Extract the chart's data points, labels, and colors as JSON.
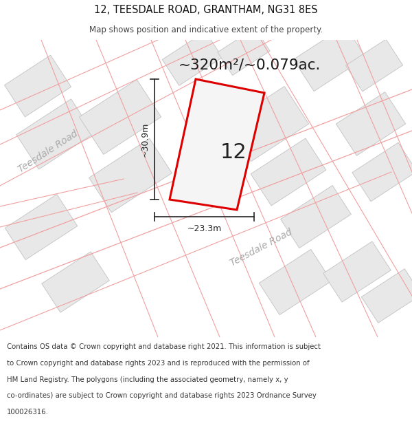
{
  "title_line1": "12, TEESDALE ROAD, GRANTHAM, NG31 8ES",
  "title_line2": "Map shows position and indicative extent of the property.",
  "area_text": "~320m²/~0.079ac.",
  "number_label": "12",
  "dim_vertical": "~30.9m",
  "dim_horizontal": "~23.3m",
  "road_label1": "Teesdale Road",
  "road_label2": "Teesdale Road",
  "footer_lines": [
    "Contains OS data © Crown copyright and database right 2021. This information is subject",
    "to Crown copyright and database rights 2023 and is reproduced with the permission of",
    "HM Land Registry. The polygons (including the associated geometry, namely x, y",
    "co-ordinates) are subject to Crown copyright and database rights 2023 Ordnance Survey",
    "100026316."
  ],
  "map_bg": "#ffffff",
  "bld_fill": "#e8e8e8",
  "bld_edge": "#c8c8c8",
  "road_line_color": "#f0a0a0",
  "highlight_color": "#dd0000",
  "highlight_fill": "#f5f5f5",
  "dim_color": "#222222",
  "footer_bg": "#ffffff",
  "title_bg": "#ffffff",
  "text_color": "#333333",
  "road_text_color": "#aaaaaa"
}
